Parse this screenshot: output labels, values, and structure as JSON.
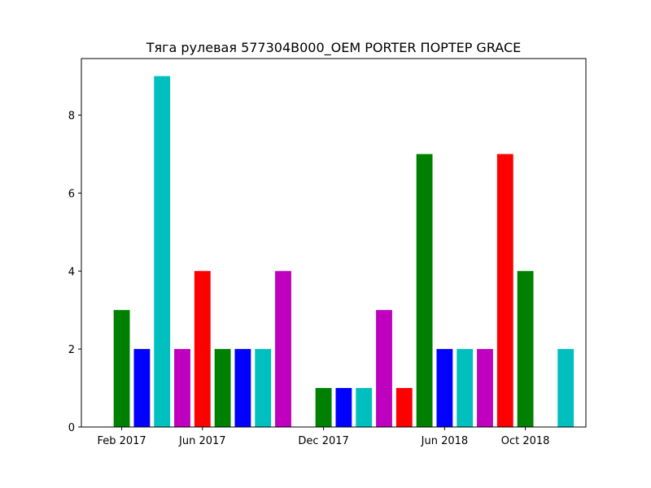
{
  "chart_data": {
    "type": "bar",
    "title": "Тяга рулевая 577304B000_OEM PORTER ПОРТЕР GRACE",
    "xlabel": "",
    "ylabel": "",
    "x_axis": {
      "type": "date",
      "range": [
        "2016-12",
        "2019-01"
      ],
      "ticks": [
        {
          "date": "2017-02",
          "label": "Feb 2017"
        },
        {
          "date": "2017-06",
          "label": "Jun 2017"
        },
        {
          "date": "2017-12",
          "label": "Dec 2017"
        },
        {
          "date": "2018-06",
          "label": "Jun 2018"
        },
        {
          "date": "2018-10",
          "label": "Oct 2018"
        }
      ]
    },
    "y_axis": {
      "range": [
        0,
        9.45
      ],
      "ticks": [
        0,
        2,
        4,
        6,
        8
      ]
    },
    "grid": false,
    "legend": "none",
    "bars": [
      {
        "month": "2017-02",
        "value": 3,
        "color": "#008000"
      },
      {
        "month": "2017-03",
        "value": 2,
        "color": "#0000ff"
      },
      {
        "month": "2017-04",
        "value": 9,
        "color": "#00bfbf"
      },
      {
        "month": "2017-05",
        "value": 2,
        "color": "#bf00bf"
      },
      {
        "month": "2017-06",
        "value": 4,
        "color": "#ff0000"
      },
      {
        "month": "2017-07",
        "value": 2,
        "color": "#008000"
      },
      {
        "month": "2017-08",
        "value": 2,
        "color": "#0000ff"
      },
      {
        "month": "2017-09",
        "value": 2,
        "color": "#00bfbf"
      },
      {
        "month": "2017-10",
        "value": 4,
        "color": "#bf00bf"
      },
      {
        "month": "2017-12",
        "value": 1,
        "color": "#008000"
      },
      {
        "month": "2018-01",
        "value": 1,
        "color": "#0000ff"
      },
      {
        "month": "2018-02",
        "value": 1,
        "color": "#00bfbf"
      },
      {
        "month": "2018-03",
        "value": 3,
        "color": "#bf00bf"
      },
      {
        "month": "2018-04",
        "value": 1,
        "color": "#ff0000"
      },
      {
        "month": "2018-05",
        "value": 7,
        "color": "#008000"
      },
      {
        "month": "2018-06",
        "value": 2,
        "color": "#0000ff"
      },
      {
        "month": "2018-07",
        "value": 2,
        "color": "#00bfbf"
      },
      {
        "month": "2018-08",
        "value": 2,
        "color": "#bf00bf"
      },
      {
        "month": "2018-09",
        "value": 7,
        "color": "#ff0000"
      },
      {
        "month": "2018-10",
        "value": 4,
        "color": "#008000"
      },
      {
        "month": "2018-12",
        "value": 2,
        "color": "#00bfbf"
      }
    ]
  }
}
